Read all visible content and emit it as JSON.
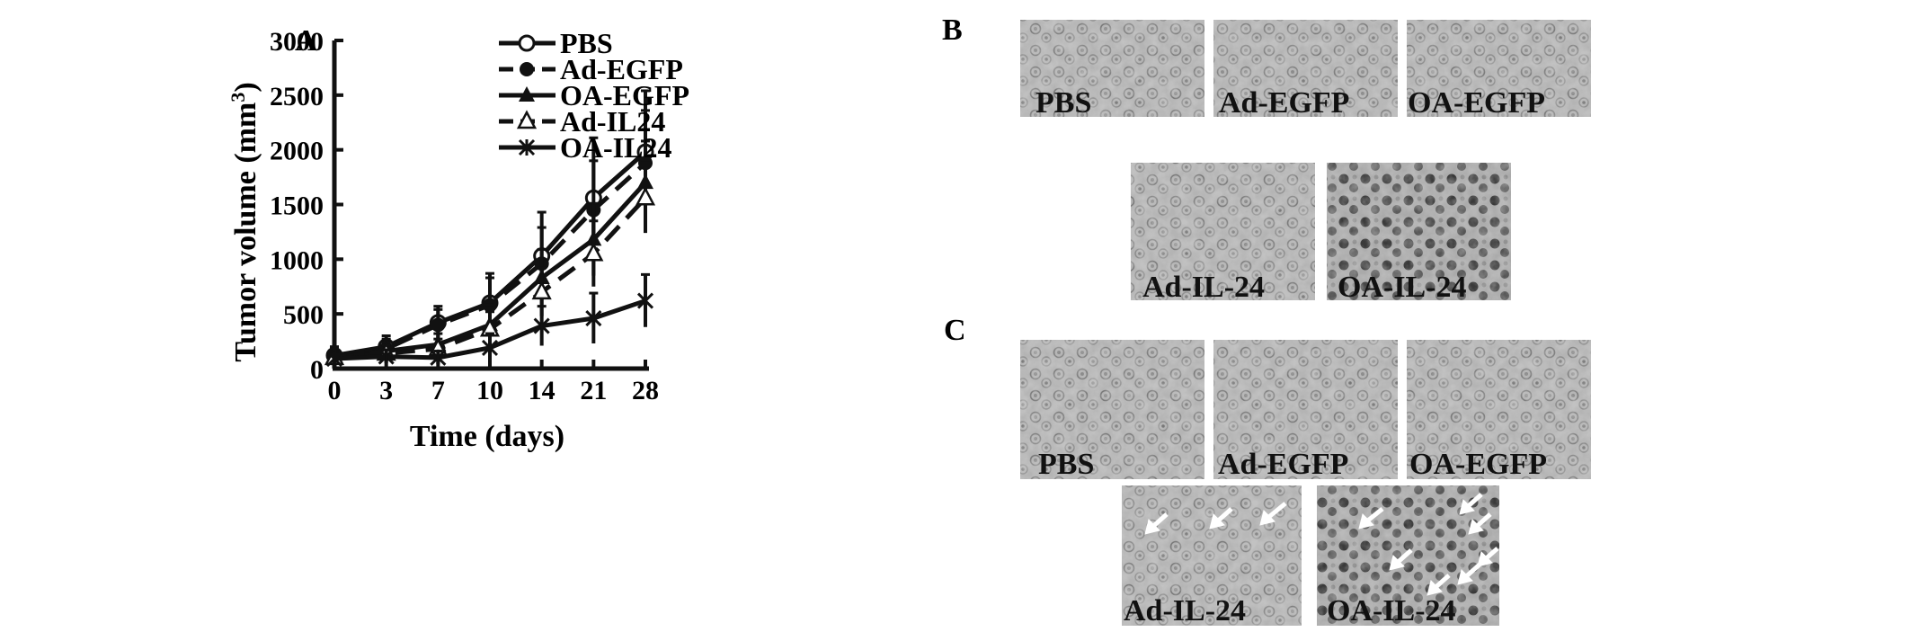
{
  "panels": {
    "A": "A",
    "B": "B",
    "C": "C"
  },
  "chart_data": {
    "type": "line",
    "title": "",
    "xlabel": "Time (days)",
    "ylabel": "Tumor volume (mm3)",
    "ylabel_main": "Tumor volume (mm",
    "ylabel_sup": "3",
    "ylabel_end": ")",
    "x": [
      0,
      3,
      7,
      10,
      14,
      21,
      28
    ],
    "xticks": [
      "0",
      "3",
      "7",
      "10",
      "14",
      "21",
      "28"
    ],
    "ylim": [
      0,
      3000
    ],
    "yticks": [
      "0",
      "500",
      "1000",
      "1500",
      "2000",
      "2500",
      "3000"
    ],
    "ytick_values": [
      0,
      500,
      1000,
      1500,
      2000,
      2500,
      3000
    ],
    "grid": false,
    "legend_position": "top-left",
    "series": [
      {
        "name": "PBS",
        "marker": "open-circle",
        "dash": "solid",
        "values": [
          120,
          200,
          420,
          600,
          1030,
          1560,
          1980
        ],
        "errors": [
          80,
          100,
          150,
          270,
          400,
          550,
          560
        ]
      },
      {
        "name": "Ad-EGFP",
        "marker": "filled-circle",
        "dash": "dashed",
        "values": [
          110,
          180,
          400,
          580,
          960,
          1450,
          1880
        ],
        "errors": [
          70,
          90,
          140,
          250,
          330,
          450,
          480
        ]
      },
      {
        "name": "OA-EGFP",
        "marker": "filled-triangle",
        "dash": "solid",
        "values": [
          100,
          160,
          220,
          400,
          830,
          1180,
          1700
        ],
        "errors": [
          60,
          80,
          100,
          180,
          260,
          330,
          380
        ]
      },
      {
        "name": "Ad-IL24",
        "marker": "open-triangle",
        "dash": "dashed",
        "values": [
          100,
          140,
          180,
          360,
          700,
          1050,
          1560
        ],
        "errors": [
          50,
          70,
          90,
          160,
          220,
          300,
          320
        ]
      },
      {
        "name": "OA-IL24",
        "marker": "star",
        "dash": "solid",
        "values": [
          90,
          110,
          100,
          190,
          390,
          460,
          620
        ],
        "errors": [
          40,
          60,
          60,
          130,
          180,
          230,
          240
        ]
      }
    ]
  },
  "micrographs": {
    "B": {
      "labels": [
        "PBS",
        "Ad-EGFP",
        "OA-EGFP",
        "Ad-IL-24",
        "OA-IL-24"
      ]
    },
    "C": {
      "labels": [
        "PBS",
        "Ad-EGFP",
        "OA-EGFP",
        "Ad-IL-24",
        "OA-IL-24"
      ]
    }
  }
}
